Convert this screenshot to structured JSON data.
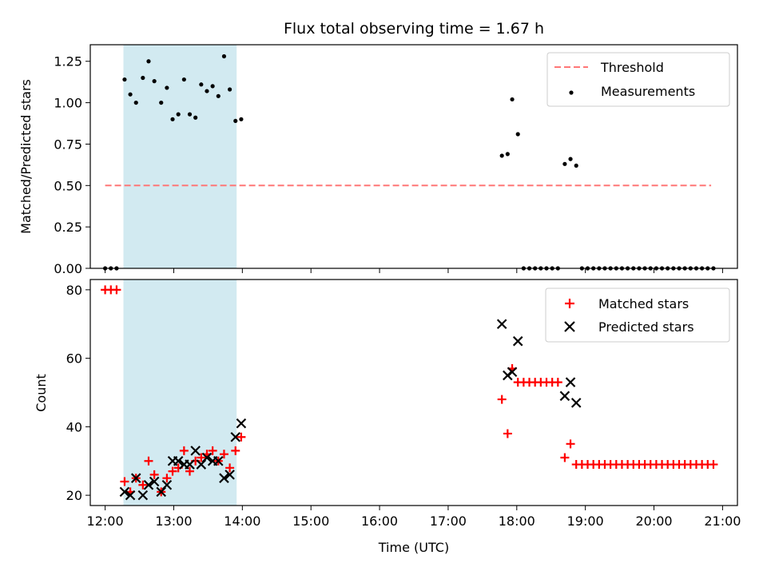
{
  "title": "Flux total observing time = 1.67 h",
  "colors": {
    "highlight": "#add8e6",
    "threshold": "#ff7777",
    "measurement": "#000000",
    "matched": "#ff0000",
    "predicted": "#000000"
  },
  "chart_data": [
    {
      "type": "scatter",
      "ylabel": "Matched/Predicted stars",
      "ylim": [
        0,
        1.35
      ],
      "yticks": [
        "0.00",
        "0.25",
        "0.50",
        "0.75",
        "1.00",
        "1.25"
      ],
      "xlim": [
        "11:47",
        "21:13"
      ],
      "grid": false,
      "legend_position": "top-right",
      "highlight_span": [
        "12:16",
        "13:55"
      ],
      "threshold": {
        "name": "Threshold",
        "y": 0.5,
        "x_range": [
          "12:00",
          "20:50"
        ]
      },
      "series": [
        {
          "name": "Measurements",
          "points": [
            [
              "12:00",
              0
            ],
            [
              "12:05",
              0
            ],
            [
              "12:10",
              0
            ],
            [
              "12:17",
              1.14
            ],
            [
              "12:22",
              1.05
            ],
            [
              "12:27",
              1.0
            ],
            [
              "12:33",
              1.15
            ],
            [
              "12:38",
              1.25
            ],
            [
              "12:43",
              1.13
            ],
            [
              "12:49",
              1.0
            ],
            [
              "12:54",
              1.09
            ],
            [
              "12:59",
              0.9
            ],
            [
              "13:04",
              0.93
            ],
            [
              "13:09",
              1.14
            ],
            [
              "13:14",
              0.93
            ],
            [
              "13:19",
              0.91
            ],
            [
              "13:24",
              1.11
            ],
            [
              "13:29",
              1.07
            ],
            [
              "13:34",
              1.1
            ],
            [
              "13:39",
              1.04
            ],
            [
              "13:44",
              1.28
            ],
            [
              "13:49",
              1.08
            ],
            [
              "13:54",
              0.89
            ],
            [
              "13:59",
              0.9
            ],
            [
              "17:47",
              0.68
            ],
            [
              "17:52",
              0.69
            ],
            [
              "17:56",
              1.02
            ],
            [
              "18:01",
              0.81
            ],
            [
              "18:06",
              0
            ],
            [
              "18:11",
              0
            ],
            [
              "18:16",
              0
            ],
            [
              "18:21",
              0
            ],
            [
              "18:26",
              0
            ],
            [
              "18:31",
              0
            ],
            [
              "18:36",
              0
            ],
            [
              "18:42",
              0.63
            ],
            [
              "18:47",
              0.66
            ],
            [
              "18:52",
              0.62
            ],
            [
              "18:57",
              0
            ],
            [
              "19:02",
              0
            ],
            [
              "19:07",
              0
            ],
            [
              "19:12",
              0
            ],
            [
              "19:17",
              0
            ],
            [
              "19:22",
              0
            ],
            [
              "19:27",
              0
            ],
            [
              "19:32",
              0
            ],
            [
              "19:37",
              0
            ],
            [
              "19:42",
              0
            ],
            [
              "19:47",
              0
            ],
            [
              "19:52",
              0
            ],
            [
              "19:57",
              0
            ],
            [
              "20:02",
              0
            ],
            [
              "20:07",
              0
            ],
            [
              "20:12",
              0
            ],
            [
              "20:17",
              0
            ],
            [
              "20:22",
              0
            ],
            [
              "20:27",
              0
            ],
            [
              "20:32",
              0
            ],
            [
              "20:37",
              0
            ],
            [
              "20:42",
              0
            ],
            [
              "20:47",
              0
            ],
            [
              "20:52",
              0
            ]
          ]
        }
      ]
    },
    {
      "type": "scatter",
      "ylabel": "Count",
      "xlabel": "Time (UTC)",
      "ylim": [
        17,
        83
      ],
      "yticks": [
        "20",
        "40",
        "60",
        "80"
      ],
      "xlim": [
        "11:47",
        "21:13"
      ],
      "xticks": [
        "12:00",
        "13:00",
        "14:00",
        "15:00",
        "16:00",
        "17:00",
        "18:00",
        "19:00",
        "20:00",
        "21:00"
      ],
      "grid": false,
      "legend_position": "top-right",
      "highlight_span": [
        "12:16",
        "13:55"
      ],
      "series": [
        {
          "name": "Matched stars",
          "marker": "plus",
          "points": [
            [
              "12:00",
              80
            ],
            [
              "12:05",
              80
            ],
            [
              "12:10",
              80
            ],
            [
              "12:17",
              24
            ],
            [
              "12:22",
              21
            ],
            [
              "12:27",
              25
            ],
            [
              "12:33",
              23
            ],
            [
              "12:38",
              30
            ],
            [
              "12:43",
              26
            ],
            [
              "12:49",
              21
            ],
            [
              "12:54",
              25
            ],
            [
              "12:59",
              27
            ],
            [
              "13:04",
              28
            ],
            [
              "13:09",
              33
            ],
            [
              "13:14",
              27
            ],
            [
              "13:19",
              30
            ],
            [
              "13:24",
              31
            ],
            [
              "13:29",
              32
            ],
            [
              "13:34",
              33
            ],
            [
              "13:39",
              30
            ],
            [
              "13:44",
              32
            ],
            [
              "13:49",
              28
            ],
            [
              "13:54",
              33
            ],
            [
              "13:59",
              37
            ],
            [
              "17:47",
              48
            ],
            [
              "17:52",
              38
            ],
            [
              "17:56",
              57
            ],
            [
              "18:01",
              53
            ],
            [
              "18:06",
              53
            ],
            [
              "18:11",
              53
            ],
            [
              "18:16",
              53
            ],
            [
              "18:21",
              53
            ],
            [
              "18:26",
              53
            ],
            [
              "18:31",
              53
            ],
            [
              "18:36",
              53
            ],
            [
              "18:42",
              31
            ],
            [
              "18:47",
              35
            ],
            [
              "18:52",
              29
            ],
            [
              "18:57",
              29
            ],
            [
              "19:02",
              29
            ],
            [
              "19:07",
              29
            ],
            [
              "19:12",
              29
            ],
            [
              "19:17",
              29
            ],
            [
              "19:22",
              29
            ],
            [
              "19:27",
              29
            ],
            [
              "19:32",
              29
            ],
            [
              "19:37",
              29
            ],
            [
              "19:42",
              29
            ],
            [
              "19:47",
              29
            ],
            [
              "19:52",
              29
            ],
            [
              "19:57",
              29
            ],
            [
              "20:02",
              29
            ],
            [
              "20:07",
              29
            ],
            [
              "20:12",
              29
            ],
            [
              "20:17",
              29
            ],
            [
              "20:22",
              29
            ],
            [
              "20:27",
              29
            ],
            [
              "20:32",
              29
            ],
            [
              "20:37",
              29
            ],
            [
              "20:42",
              29
            ],
            [
              "20:47",
              29
            ],
            [
              "20:52",
              29
            ]
          ]
        },
        {
          "name": "Predicted stars",
          "marker": "x",
          "points": [
            [
              "12:17",
              21
            ],
            [
              "12:22",
              20
            ],
            [
              "12:27",
              25
            ],
            [
              "12:33",
              20
            ],
            [
              "12:38",
              23
            ],
            [
              "12:43",
              24
            ],
            [
              "12:49",
              21
            ],
            [
              "12:54",
              23
            ],
            [
              "12:59",
              30
            ],
            [
              "13:04",
              30
            ],
            [
              "13:09",
              29
            ],
            [
              "13:14",
              29
            ],
            [
              "13:19",
              33
            ],
            [
              "13:24",
              29
            ],
            [
              "13:29",
              31
            ],
            [
              "13:34",
              30
            ],
            [
              "13:39",
              30
            ],
            [
              "13:44",
              25
            ],
            [
              "13:49",
              26
            ],
            [
              "13:54",
              37
            ],
            [
              "13:59",
              41
            ],
            [
              "17:47",
              70
            ],
            [
              "17:52",
              55
            ],
            [
              "17:56",
              56
            ],
            [
              "18:01",
              65
            ],
            [
              "18:42",
              49
            ],
            [
              "18:47",
              53
            ],
            [
              "18:52",
              47
            ]
          ]
        }
      ]
    }
  ]
}
